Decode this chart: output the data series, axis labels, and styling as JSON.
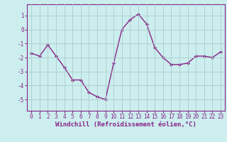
{
  "x": [
    0,
    1,
    2,
    3,
    4,
    5,
    6,
    7,
    8,
    9,
    10,
    11,
    12,
    13,
    14,
    15,
    16,
    17,
    18,
    19,
    20,
    21,
    22,
    23
  ],
  "y": [
    -1.7,
    -1.9,
    -1.1,
    -1.9,
    -2.7,
    -3.6,
    -3.6,
    -4.5,
    -4.8,
    -5.0,
    -2.4,
    0.0,
    0.7,
    1.1,
    0.4,
    -1.3,
    -2.0,
    -2.5,
    -2.5,
    -2.4,
    -1.9,
    -1.9,
    -2.0,
    -1.6
  ],
  "line_color": "#882288",
  "marker": "D",
  "markersize": 2.0,
  "linewidth": 1.0,
  "xlabel": "Windchill (Refroidissement éolien,°C)",
  "xlabel_fontsize": 6.5,
  "background_color": "#cceeee",
  "grid_color": "#aacccc",
  "xlim": [
    -0.5,
    23.5
  ],
  "ylim": [
    -5.8,
    1.8
  ],
  "yticks": [
    -5,
    -4,
    -3,
    -2,
    -1,
    0,
    1
  ],
  "xticks": [
    0,
    1,
    2,
    3,
    4,
    5,
    6,
    7,
    8,
    9,
    10,
    11,
    12,
    13,
    14,
    15,
    16,
    17,
    18,
    19,
    20,
    21,
    22,
    23
  ],
  "tick_fontsize": 5.5,
  "spine_color": "#882288",
  "text_color": "#882288"
}
